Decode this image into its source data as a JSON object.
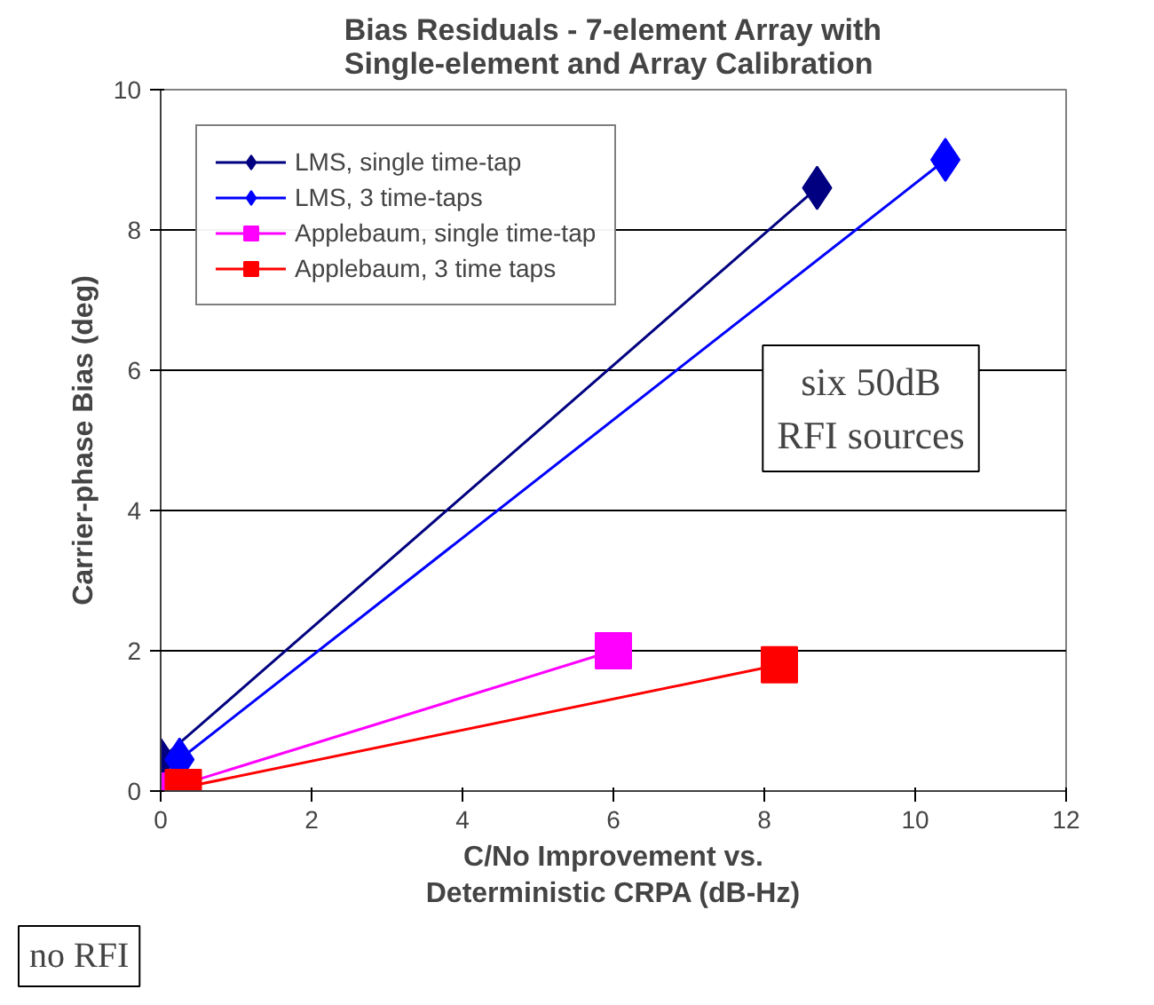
{
  "chart_data": {
    "type": "line",
    "title": "Bias Residuals - 7-element Array with\nSingle-element and Array Calibration",
    "xlabel": "C/No Improvement vs.\nDeterministic CRPA (dB-Hz)",
    "ylabel": "Carrier-phase Bias (deg)",
    "xlim": [
      0,
      12
    ],
    "xticks": [
      0,
      2,
      4,
      6,
      8,
      10,
      12
    ],
    "ylim": [
      0,
      10
    ],
    "yticks": [
      0,
      2,
      4,
      6,
      8,
      10
    ],
    "grid": "y",
    "legend": "top left",
    "series": [
      {
        "name": "LMS, single time-tap",
        "color": "#000080",
        "marker": "diamond",
        "x": [
          0,
          8.7
        ],
        "values": [
          0.45,
          8.6
        ]
      },
      {
        "name": "LMS, 3 time-taps",
        "color": "#0000ff",
        "marker": "diamond",
        "x": [
          0.25,
          10.4
        ],
        "values": [
          0.45,
          9.0
        ]
      },
      {
        "name": "Applebaum, single time-tap",
        "color": "#ff00ff",
        "marker": "square",
        "x": [
          0,
          6.0
        ],
        "values": [
          0,
          2.0
        ]
      },
      {
        "name": "Applebaum, 3 time taps",
        "color": "#ff0000",
        "marker": "square",
        "x": [
          0.3,
          8.2
        ],
        "values": [
          0.05,
          1.8
        ]
      }
    ],
    "annotations": [
      "six 50dB\nRFI sources",
      "no RFI"
    ]
  }
}
